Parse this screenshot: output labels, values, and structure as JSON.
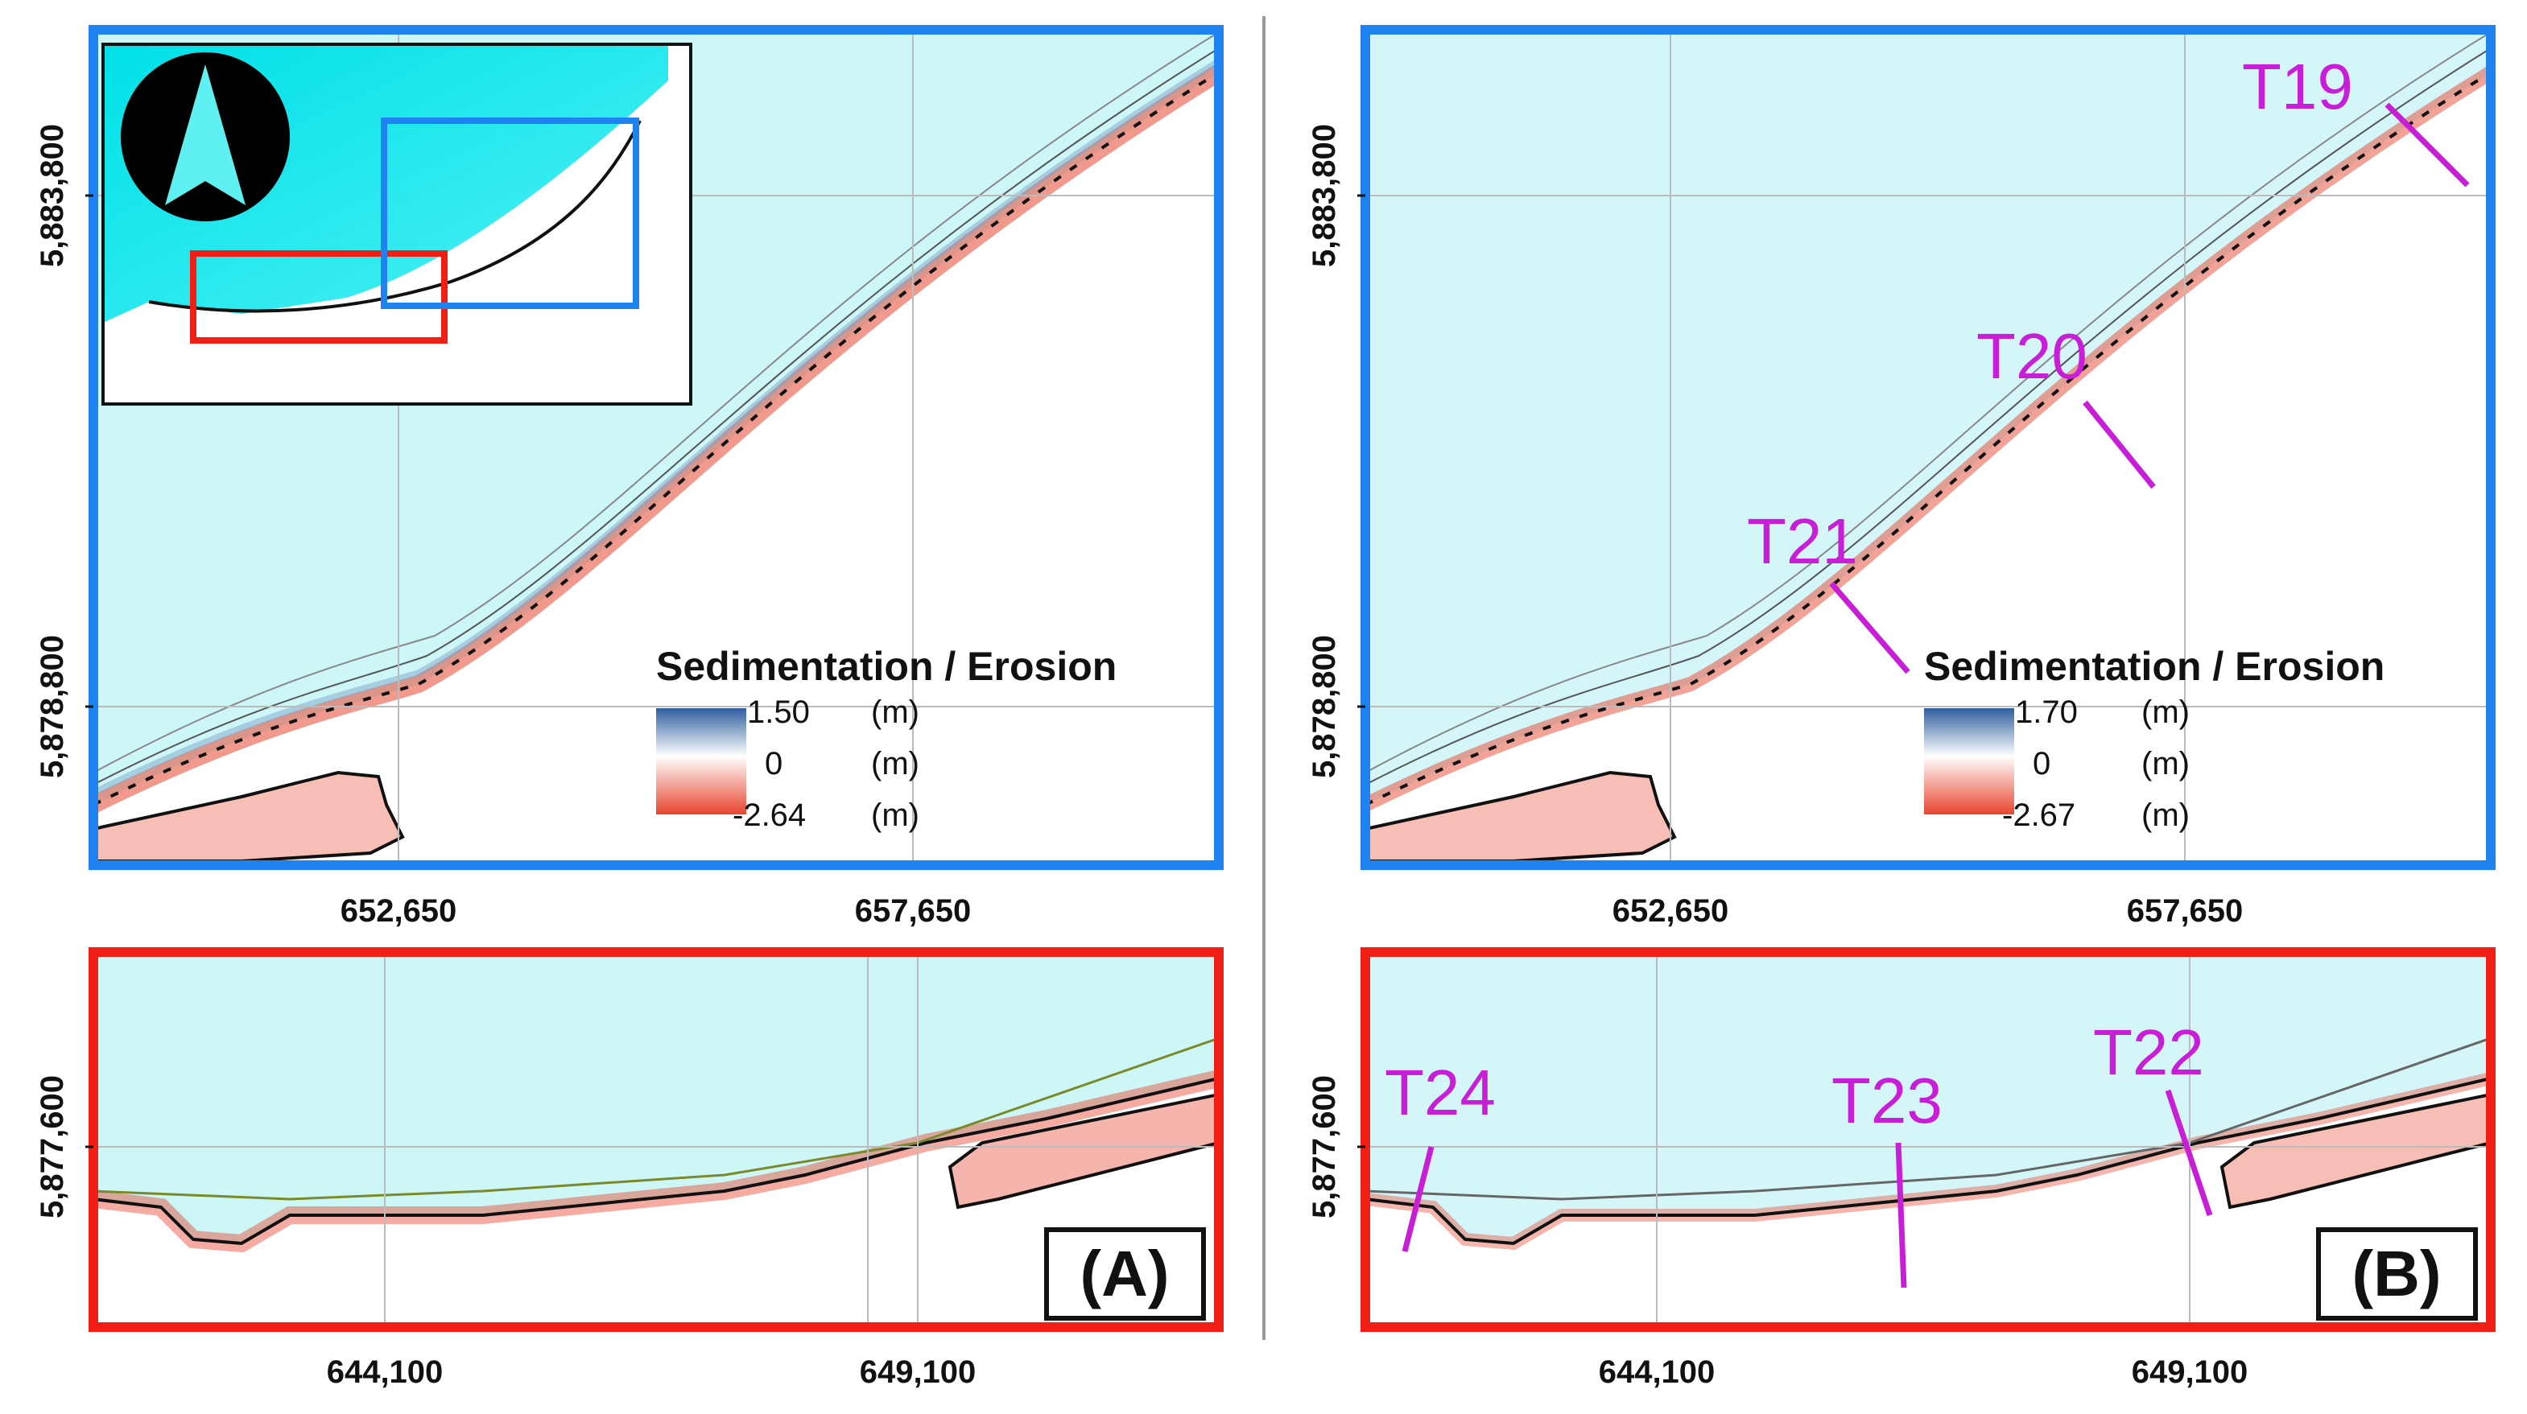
{
  "colors": {
    "sea": "#cdf6f6",
    "sea_inset": "#1ce3e6",
    "land": "#ffffff",
    "erosion": "#e8452f",
    "sedimentation": "#2e5f9e",
    "frame_blue": "#1e82f0",
    "frame_red": "#f01e14",
    "transect": "#c81ed8",
    "coast": "#111111",
    "divider": "#999999"
  },
  "panels": {
    "A": {
      "label": "(A)",
      "top": {
        "y_ticks": [
          "5,883,800",
          "5,878,800"
        ],
        "x_ticks": [
          "652,650",
          "657,650"
        ],
        "legend": {
          "title": "Sedimentation / Erosion",
          "max": "1.50",
          "mid": "0",
          "min": "-2.64",
          "unit_max": "(m)",
          "unit_mid": "(m)",
          "unit_min": "(m)"
        }
      },
      "bottom": {
        "y_ticks": [
          "5,877,600"
        ],
        "x_ticks": [
          "644,100",
          "649,100"
        ]
      }
    },
    "B": {
      "label": "(B)",
      "top": {
        "y_ticks": [
          "5,883,800",
          "5,878,800"
        ],
        "x_ticks": [
          "652,650",
          "657,650"
        ],
        "legend": {
          "title": "Sedimentation / Erosion",
          "max": "1.70",
          "mid": "0",
          "min": "-2.67",
          "unit_max": "(m)",
          "unit_mid": "(m)",
          "unit_min": "(m)"
        }
      },
      "bottom": {
        "y_ticks": [
          "5,877,600"
        ],
        "x_ticks": [
          "644,100",
          "649,100"
        ]
      }
    }
  },
  "transects": {
    "top": [
      "T19",
      "T20",
      "T21"
    ],
    "bottom": [
      "T22",
      "T23",
      "T24"
    ]
  },
  "icons": {
    "north_arrow": "north-arrow-icon"
  }
}
